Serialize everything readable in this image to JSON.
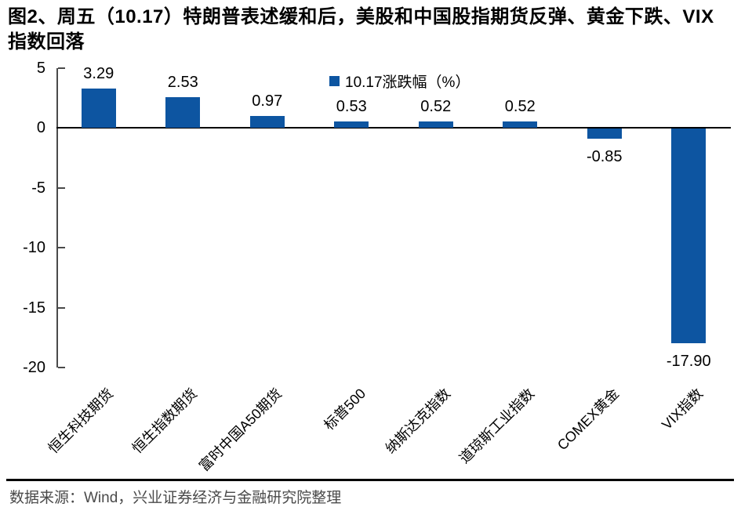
{
  "figure": {
    "title": "图2、周五（10.17）特朗普表述缓和后，美股和中国股指期货反弹、黄金下跌、VIX\n指数回落"
  },
  "chart_data": {
    "type": "bar",
    "title": "图2、周五（10.17）特朗普表述缓和后，美股和中国股指期货反弹、黄金下跌、VIX指数回落",
    "legend": "10.17涨跌幅（%）",
    "legend_position": "top-center",
    "categories": [
      "恒生科技期货",
      "恒生指数期货",
      "富时中国A50期货",
      "标普500",
      "纳斯达克指数",
      "道琼斯工业指数",
      "COMEX黄金",
      "VIX指数"
    ],
    "values": [
      3.29,
      2.53,
      0.97,
      0.53,
      0.52,
      0.52,
      -0.85,
      -17.9
    ],
    "value_labels": [
      "3.29",
      "2.53",
      "0.97",
      "0.53",
      "0.52",
      "0.52",
      "-0.85",
      "-17.90"
    ],
    "xlabel": "",
    "ylabel": "",
    "ylim": [
      -20,
      5
    ],
    "y_ticks": [
      5,
      0,
      -5,
      -10,
      -15,
      -20
    ],
    "grid": false,
    "bar_color": "#0D55A1",
    "axis_color": "#4a4a4a",
    "zero_line_color": "#000000"
  },
  "footer": {
    "source": "数据来源：Wind，兴业证券经济与金融研究院整理"
  }
}
